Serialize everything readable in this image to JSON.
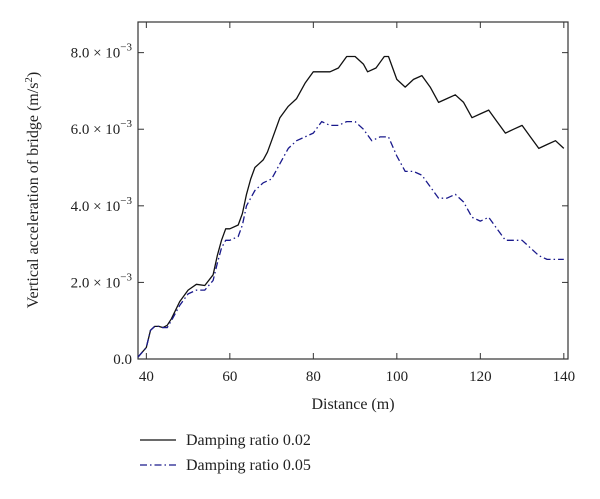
{
  "chart_data": {
    "type": "line",
    "title": "",
    "xlabel": "Distance (m)",
    "ylabel_main": "Vertical acceleration of bridge (m/s",
    "ylabel_sup": "2",
    "ylabel_end": ")",
    "xlim": [
      38,
      141
    ],
    "ylim": [
      0,
      0.0088
    ],
    "grid": false,
    "legend_position": "below",
    "x_ticks": [
      40,
      60,
      80,
      100,
      120,
      140
    ],
    "x_tick_labels": [
      "40",
      "60",
      "80",
      "100",
      "120",
      "140"
    ],
    "y_ticks": [
      0,
      0.002,
      0.004,
      0.006,
      0.008
    ],
    "y_tick_labels": [
      {
        "mantissa": "0.0",
        "exponent": ""
      },
      {
        "mantissa": "2.0 × 10",
        "exponent": "−3"
      },
      {
        "mantissa": "4.0 × 10",
        "exponent": "−3"
      },
      {
        "mantissa": "6.0 × 10",
        "exponent": "−3"
      },
      {
        "mantissa": "8.0 × 10",
        "exponent": "−3"
      }
    ],
    "series": [
      {
        "name": "Damping ratio 0.02",
        "color": "#111111",
        "dash": "solid",
        "points": [
          [
            38,
            5e-05
          ],
          [
            40,
            0.0003
          ],
          [
            41,
            0.00075
          ],
          [
            42,
            0.00085
          ],
          [
            43,
            0.00085
          ],
          [
            44,
            0.00082
          ],
          [
            45,
            0.00088
          ],
          [
            46,
            0.00105
          ],
          [
            48,
            0.0015
          ],
          [
            50,
            0.0018
          ],
          [
            52,
            0.00195
          ],
          [
            54,
            0.00192
          ],
          [
            56,
            0.0022
          ],
          [
            57,
            0.0027
          ],
          [
            58,
            0.0031
          ],
          [
            59,
            0.0034
          ],
          [
            60,
            0.0034
          ],
          [
            62,
            0.0035
          ],
          [
            63,
            0.0038
          ],
          [
            64,
            0.0043
          ],
          [
            65,
            0.0047
          ],
          [
            66,
            0.005
          ],
          [
            67,
            0.0051
          ],
          [
            68,
            0.0052
          ],
          [
            69,
            0.0054
          ],
          [
            70,
            0.0057
          ],
          [
            72,
            0.0063
          ],
          [
            74,
            0.0066
          ],
          [
            76,
            0.0068
          ],
          [
            78,
            0.0072
          ],
          [
            80,
            0.0075
          ],
          [
            82,
            0.0075
          ],
          [
            84,
            0.0075
          ],
          [
            86,
            0.0076
          ],
          [
            88,
            0.0079
          ],
          [
            90,
            0.0079
          ],
          [
            92,
            0.0077
          ],
          [
            93,
            0.0075
          ],
          [
            95,
            0.0076
          ],
          [
            97,
            0.0079
          ],
          [
            98,
            0.0079
          ],
          [
            100,
            0.0073
          ],
          [
            102,
            0.0071
          ],
          [
            104,
            0.0073
          ],
          [
            106,
            0.0074
          ],
          [
            108,
            0.0071
          ],
          [
            110,
            0.0067
          ],
          [
            112,
            0.0068
          ],
          [
            114,
            0.0069
          ],
          [
            116,
            0.0067
          ],
          [
            118,
            0.0063
          ],
          [
            120,
            0.0064
          ],
          [
            122,
            0.0065
          ],
          [
            124,
            0.0062
          ],
          [
            126,
            0.0059
          ],
          [
            128,
            0.006
          ],
          [
            130,
            0.0061
          ],
          [
            132,
            0.0058
          ],
          [
            134,
            0.0055
          ],
          [
            136,
            0.0056
          ],
          [
            138,
            0.0057
          ],
          [
            140,
            0.0055
          ]
        ]
      },
      {
        "name": "Damping ratio 0.05",
        "color": "#1a1a8c",
        "dash": "dashdot",
        "points": [
          [
            38,
            5e-05
          ],
          [
            40,
            0.0003
          ],
          [
            41,
            0.00075
          ],
          [
            42,
            0.00085
          ],
          [
            43,
            0.00085
          ],
          [
            44,
            0.00082
          ],
          [
            45,
            0.00082
          ],
          [
            46,
            0.001
          ],
          [
            48,
            0.0014
          ],
          [
            50,
            0.0017
          ],
          [
            52,
            0.0018
          ],
          [
            54,
            0.0018
          ],
          [
            56,
            0.00205
          ],
          [
            57,
            0.0025
          ],
          [
            58,
            0.0029
          ],
          [
            59,
            0.0031
          ],
          [
            60,
            0.0031
          ],
          [
            62,
            0.0032
          ],
          [
            63,
            0.0035
          ],
          [
            64,
            0.004
          ],
          [
            66,
            0.0044
          ],
          [
            68,
            0.0046
          ],
          [
            70,
            0.0047
          ],
          [
            72,
            0.0051
          ],
          [
            74,
            0.0055
          ],
          [
            76,
            0.0057
          ],
          [
            78,
            0.0058
          ],
          [
            80,
            0.0059
          ],
          [
            82,
            0.0062
          ],
          [
            84,
            0.0061
          ],
          [
            86,
            0.0061
          ],
          [
            88,
            0.0062
          ],
          [
            90,
            0.0062
          ],
          [
            92,
            0.006
          ],
          [
            94,
            0.0057
          ],
          [
            96,
            0.0058
          ],
          [
            98,
            0.0058
          ],
          [
            100,
            0.0053
          ],
          [
            102,
            0.0049
          ],
          [
            104,
            0.0049
          ],
          [
            106,
            0.0048
          ],
          [
            108,
            0.0045
          ],
          [
            110,
            0.0042
          ],
          [
            112,
            0.0042
          ],
          [
            114,
            0.0043
          ],
          [
            116,
            0.0041
          ],
          [
            118,
            0.0037
          ],
          [
            120,
            0.0036
          ],
          [
            122,
            0.0037
          ],
          [
            124,
            0.0034
          ],
          [
            126,
            0.0031
          ],
          [
            128,
            0.0031
          ],
          [
            130,
            0.0031
          ],
          [
            132,
            0.0029
          ],
          [
            134,
            0.0027
          ],
          [
            136,
            0.0026
          ],
          [
            138,
            0.0026
          ],
          [
            140,
            0.0026
          ]
        ]
      }
    ]
  }
}
